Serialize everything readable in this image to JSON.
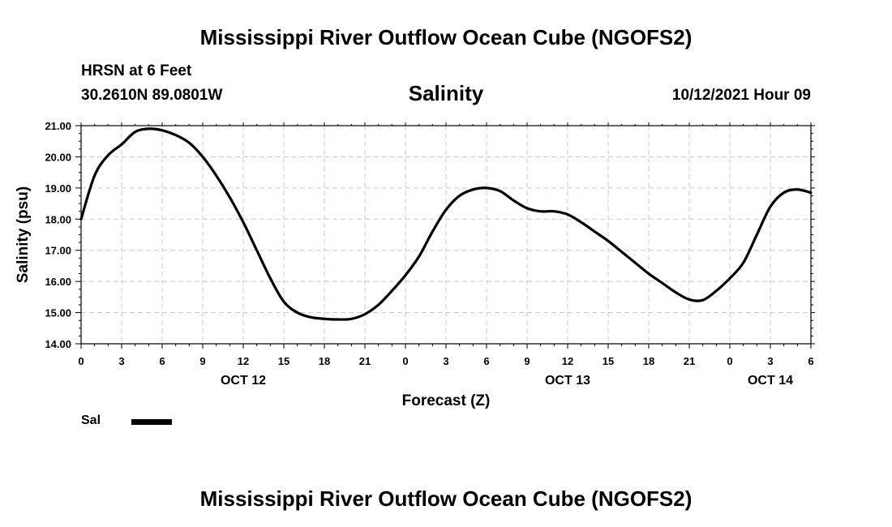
{
  "header": {
    "title": "Mississippi River Outflow Ocean Cube (NGOFS2)",
    "station_name": "HRSN at 6 Feet",
    "station_coords": "30.2610N  89.0801W",
    "run_datetime": "10/12/2021 Hour 09"
  },
  "footer": {
    "title": "Mississippi River Outflow Ocean Cube (NGOFS2)"
  },
  "legend": {
    "label": "Sal"
  },
  "chart_data": {
    "type": "line",
    "title": "Salinity",
    "xlabel": "Forecast (Z)",
    "ylabel": "Salinity (psu)",
    "xlim": [
      0,
      54
    ],
    "ylim": [
      14.0,
      21.0
    ],
    "x_tick_labels": [
      "0",
      "3",
      "6",
      "9",
      "12",
      "15",
      "18",
      "21",
      "0",
      "3",
      "6",
      "9",
      "12",
      "15",
      "18",
      "21",
      "0",
      "3",
      "6"
    ],
    "y_tick_labels": [
      "14.00",
      "15.00",
      "16.00",
      "17.00",
      "18.00",
      "19.00",
      "20.00",
      "21.00"
    ],
    "date_labels": [
      {
        "label": "OCT 12",
        "hour": 12
      },
      {
        "label": "OCT 13",
        "hour": 36
      },
      {
        "label": "OCT 14",
        "hour": 51
      }
    ],
    "grid": true,
    "legend_position": "bottom-left",
    "line_color": "#000000",
    "series": [
      {
        "name": "Sal",
        "x": [
          0,
          1,
          2,
          3,
          4,
          5,
          6,
          7,
          8,
          9,
          10,
          11,
          12,
          13,
          14,
          15,
          16,
          17,
          18,
          19,
          20,
          21,
          22,
          23,
          24,
          25,
          26,
          27,
          28,
          29,
          30,
          31,
          32,
          33,
          34,
          35,
          36,
          37,
          38,
          39,
          40,
          41,
          42,
          43,
          44,
          45,
          46,
          47,
          48,
          49,
          50,
          51,
          52,
          53,
          54
        ],
        "y": [
          18.0,
          19.4,
          20.05,
          20.4,
          20.8,
          20.9,
          20.85,
          20.7,
          20.45,
          20.0,
          19.4,
          18.7,
          17.9,
          17.0,
          16.1,
          15.35,
          15.0,
          14.85,
          14.8,
          14.78,
          14.8,
          14.95,
          15.25,
          15.7,
          16.2,
          16.8,
          17.6,
          18.3,
          18.75,
          18.95,
          19.0,
          18.9,
          18.6,
          18.35,
          18.25,
          18.25,
          18.15,
          17.9,
          17.6,
          17.3,
          16.95,
          16.6,
          16.25,
          15.95,
          15.65,
          15.42,
          15.4,
          15.7,
          16.1,
          16.6,
          17.5,
          18.4,
          18.85,
          18.95,
          18.85
        ]
      }
    ]
  }
}
